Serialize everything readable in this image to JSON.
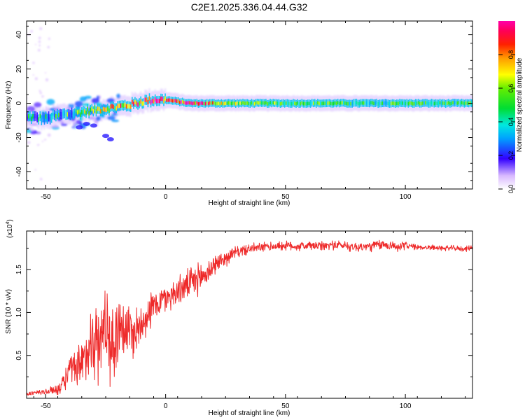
{
  "title": "C2E1.2025.336.04.44.G32",
  "chart_data": [
    {
      "type": "heatmap",
      "title": "C2E1.2025.336.04.44.G32",
      "xlabel": "Height of straight line (km)",
      "ylabel": "Frequency (Hz)",
      "xlim": [
        -58,
        128
      ],
      "ylim": [
        -50,
        48
      ],
      "x_ticks": [
        -50,
        0,
        50,
        100
      ],
      "x_tick_labels": [
        "-50",
        "0",
        "50",
        "100"
      ],
      "y_ticks": [
        -40,
        -20,
        0,
        20,
        40
      ],
      "y_tick_labels": [
        "-40",
        "-20",
        "0",
        "20",
        "40"
      ],
      "colorbar": {
        "label": "Normalized spectral amplitude",
        "range": [
          0,
          1
        ],
        "ticks": [
          0.0,
          0.2,
          0.4,
          0.6,
          0.8
        ],
        "tick_labels": [
          "0.0",
          "0.2",
          "0.4",
          "0.6",
          "0.8"
        ]
      },
      "ridge": {
        "x": [
          -57,
          -50,
          -45,
          -40,
          -35,
          -30,
          -25,
          -20,
          -15,
          -10,
          -5,
          0,
          5,
          10,
          20,
          30,
          40,
          50,
          60,
          70,
          80,
          90,
          100,
          110,
          120,
          128
        ],
        "frequency": [
          -8,
          -9,
          -7,
          -6,
          -5,
          -4,
          -3,
          -2,
          -1,
          1,
          2,
          2,
          1,
          0,
          0,
          0,
          0,
          0,
          0,
          0,
          0,
          0,
          0,
          0,
          0,
          0
        ],
        "amplitude": [
          0.3,
          0.35,
          0.4,
          0.45,
          0.5,
          0.55,
          0.6,
          0.7,
          0.75,
          0.85,
          0.9,
          0.92,
          0.9,
          0.85,
          0.7,
          0.55,
          0.55,
          0.5,
          0.5,
          0.5,
          0.45,
          0.45,
          0.5,
          0.45,
          0.45,
          0.5
        ]
      }
    },
    {
      "type": "line",
      "xlabel": "Height of straight line (km)",
      "ylabel": "SNR (10 * v/v)",
      "scale_label": "(x10",
      "scale_exp": "4",
      "xlim": [
        -58,
        128
      ],
      "ylim": [
        0,
        19500
      ],
      "x_ticks": [
        -50,
        0,
        50,
        100
      ],
      "x_tick_labels": [
        "-50",
        "0",
        "50",
        "100"
      ],
      "y_ticks": [
        5000,
        10000,
        15000
      ],
      "y_tick_labels": [
        "0.5",
        "1.0",
        "1.5"
      ],
      "series": [
        {
          "name": "SNR",
          "color": "#ee2a2a",
          "x": [
            -58,
            -55,
            -52,
            -49,
            -46,
            -43,
            -40,
            -37,
            -34,
            -31,
            -28,
            -25,
            -22,
            -19,
            -16,
            -13,
            -10,
            -7,
            -4,
            -1,
            2,
            5,
            8,
            11,
            14,
            17,
            20,
            23,
            26,
            29,
            32,
            35,
            40,
            45,
            50,
            55,
            60,
            65,
            70,
            75,
            80,
            85,
            90,
            95,
            98,
            100,
            102,
            105,
            110,
            115,
            120,
            125,
            128
          ],
          "y": [
            500,
            600,
            700,
            800,
            1000,
            1500,
            3500,
            3000,
            4000,
            7500,
            6000,
            9000,
            5500,
            9000,
            8000,
            7500,
            9000,
            10000,
            11000,
            11500,
            12000,
            12500,
            13000,
            13500,
            14000,
            14500,
            15500,
            16000,
            16500,
            17000,
            17200,
            17400,
            17600,
            17700,
            17800,
            17700,
            17800,
            17700,
            17900,
            17800,
            17600,
            17700,
            17900,
            17800,
            17500,
            18000,
            17700,
            17600,
            17600,
            17500,
            17500,
            17400,
            17600
          ],
          "spread": [
            200,
            250,
            300,
            350,
            500,
            800,
            1500,
            2000,
            3000,
            3500,
            4000,
            4000,
            4000,
            3500,
            3000,
            2500,
            2000,
            1800,
            1500,
            1400,
            1400,
            1400,
            1400,
            1500,
            1500,
            1400,
            1000,
            800,
            700,
            600,
            500,
            500,
            450,
            450,
            450,
            450,
            450,
            450,
            450,
            450,
            500,
            500,
            500,
            450,
            450,
            400,
            300,
            250,
            250,
            250,
            250,
            250,
            250
          ]
        }
      ]
    }
  ]
}
